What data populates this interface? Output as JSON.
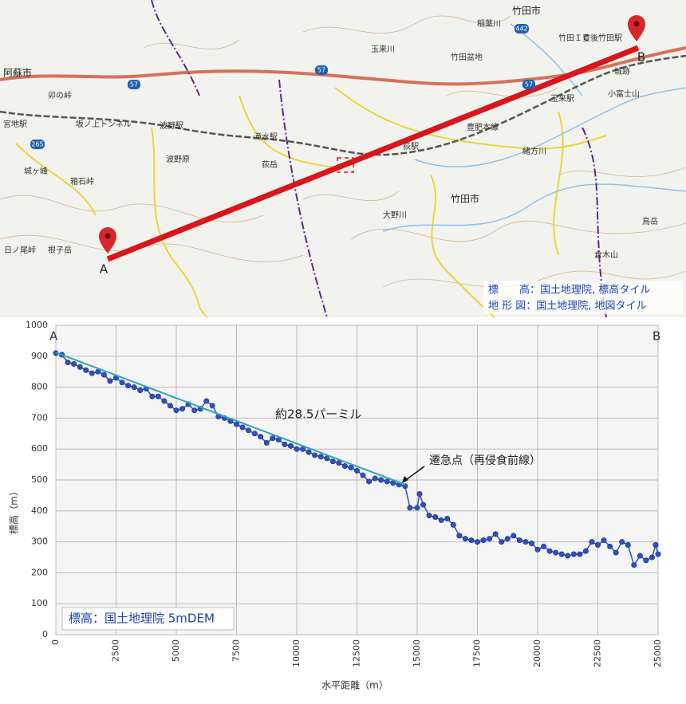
{
  "map": {
    "labels": [
      "竹田市",
      "阿蘇市",
      "竹田ＩＣ",
      "豊後竹田駅",
      "稲葉川",
      "玉来川",
      "竹田盆地",
      "玉来駅",
      "豊肥本線",
      "城跡",
      "小富士山",
      "緒方川",
      "竹田市",
      "大野川",
      "倉木山",
      "鳥岳",
      "滝水駅",
      "荻岳",
      "荻駅",
      "波野駅",
      "波野原",
      "坂ノ上トンネル",
      "箱石峠",
      "根子岳",
      "日ノ尾峠",
      "卯の峠",
      "宮地駅",
      "城ヶ峰"
    ],
    "routes": [
      "57",
      "57",
      "57",
      "442",
      "265"
    ],
    "markers": [
      "A",
      "B"
    ],
    "credits": [
      "標　　高：国土地理院, 標高タイル",
      "地 形 図：国土地理院, 地図タイル"
    ]
  },
  "chart_data": {
    "type": "line",
    "xlabel": "水平距離（m）",
    "ylabel": "標高（m）",
    "xlim": [
      0,
      25000
    ],
    "ylim": [
      0,
      1000
    ],
    "xticks": [
      0,
      2500,
      5000,
      7500,
      10000,
      12500,
      15000,
      17500,
      20000,
      22500,
      25000
    ],
    "yticks": [
      0,
      100,
      200,
      300,
      400,
      500,
      600,
      700,
      800,
      900,
      1000
    ],
    "grid": true,
    "annotations": [
      "A",
      "B",
      "約28.5パーミル",
      "遷急点（再侵食前線）",
      "標高：国土地理院 5mDEM"
    ],
    "series": [
      {
        "color": "#3050c0",
        "x": [
          0,
          250,
          500,
          750,
          1000,
          1250,
          1500,
          1750,
          2000,
          2250,
          2500,
          2750,
          3000,
          3250,
          3500,
          3750,
          4000,
          4250,
          4500,
          4750,
          5000,
          5250,
          5500,
          5750,
          6000,
          6250,
          6500,
          6750,
          7000,
          7250,
          7500,
          7750,
          8000,
          8250,
          8500,
          8750,
          9000,
          9250,
          9500,
          9750,
          10000,
          10250,
          10500,
          10750,
          11000,
          11250,
          11500,
          11750,
          12000,
          12250,
          12500,
          12750,
          13000,
          13250,
          13500,
          13750,
          14000,
          14250,
          14500,
          14700,
          15000,
          15100,
          15250,
          15500,
          15750,
          16000,
          16250,
          16500,
          16750,
          17000,
          17250,
          17500,
          17750,
          18000,
          18250,
          18500,
          18750,
          19000,
          19250,
          19500,
          19750,
          20000,
          20250,
          20500,
          20750,
          21000,
          21250,
          21500,
          21750,
          22000,
          22250,
          22500,
          22750,
          23000,
          23250,
          23500,
          23750,
          24000,
          24250,
          24500,
          24750,
          24900,
          25000
        ],
        "values": [
          910,
          905,
          880,
          875,
          865,
          855,
          845,
          850,
          840,
          820,
          830,
          815,
          805,
          800,
          790,
          795,
          770,
          770,
          755,
          740,
          725,
          730,
          745,
          725,
          730,
          755,
          740,
          705,
          700,
          690,
          680,
          670,
          660,
          650,
          640,
          620,
          635,
          630,
          615,
          610,
          600,
          600,
          590,
          580,
          575,
          570,
          560,
          555,
          545,
          540,
          530,
          515,
          495,
          505,
          500,
          495,
          490,
          485,
          480,
          410,
          410,
          455,
          420,
          385,
          380,
          370,
          375,
          355,
          320,
          310,
          305,
          300,
          305,
          310,
          325,
          300,
          310,
          320,
          305,
          300,
          295,
          275,
          285,
          270,
          265,
          260,
          255,
          260,
          260,
          270,
          300,
          290,
          305,
          285,
          265,
          300,
          290,
          225,
          255,
          240,
          250,
          290,
          260
        ]
      },
      {
        "color": "#2aa6b8",
        "x": [
          0,
          14500
        ],
        "values": [
          912,
          485
        ]
      }
    ]
  }
}
